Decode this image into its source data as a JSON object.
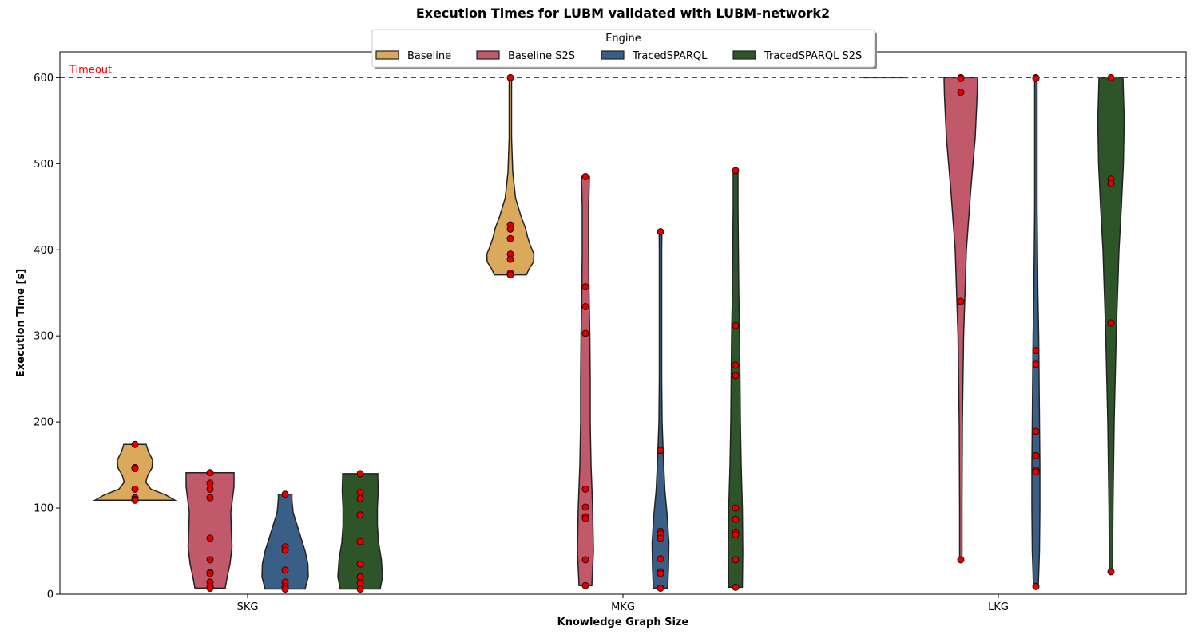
{
  "chart_data": {
    "type": "violin",
    "title": "Execution Times for LUBM validated with LUBM-network2",
    "xlabel": "Knowledge Graph Size",
    "ylabel": "Execution Time [s]",
    "ylim": [
      0,
      630
    ],
    "yticks": [
      0,
      100,
      200,
      300,
      400,
      500,
      600
    ],
    "categories": [
      "SKG",
      "MKG",
      "LKG"
    ],
    "timeout": {
      "value": 600,
      "label": "Timeout",
      "color": "#ff0000"
    },
    "legend": {
      "title": "Engine",
      "placement": "top-center"
    },
    "series": [
      {
        "name": "Baseline",
        "color": "#dba95c",
        "points": [
          [
            174,
            147,
            146,
            122,
            112,
            110,
            109
          ],
          [
            600,
            429,
            424,
            413,
            395,
            389,
            373,
            371
          ],
          []
        ],
        "shapes": [
          [
            [
              109,
              1.0
            ],
            [
              115,
              0.78
            ],
            [
              122,
              0.4
            ],
            [
              130,
              0.27
            ],
            [
              138,
              0.32
            ],
            [
              147,
              0.43
            ],
            [
              156,
              0.44
            ],
            [
              165,
              0.34
            ],
            [
              174,
              0.28
            ]
          ],
          [
            [
              371,
              0.4
            ],
            [
              378,
              0.47
            ],
            [
              386,
              0.58
            ],
            [
              395,
              0.59
            ],
            [
              405,
              0.5
            ],
            [
              415,
              0.43
            ],
            [
              425,
              0.38
            ],
            [
              440,
              0.26
            ],
            [
              460,
              0.13
            ],
            [
              490,
              0.06
            ],
            [
              530,
              0.03
            ],
            [
              570,
              0.03
            ],
            [
              600,
              0.03
            ]
          ],
          [
            [
              600,
              0.55
            ],
            [
              600.5,
              0.55
            ]
          ]
        ]
      },
      {
        "name": "Baseline S2S",
        "color": "#c1596a",
        "points": [
          [
            141,
            129,
            122,
            112,
            65,
            40,
            25,
            24,
            14,
            9,
            7
          ],
          [
            485,
            357,
            334,
            303,
            122,
            101,
            90,
            88,
            40,
            10
          ],
          [
            600,
            599,
            583,
            340,
            40
          ]
        ],
        "shapes": [
          [
            [
              7,
              0.38
            ],
            [
              20,
              0.43
            ],
            [
              35,
              0.5
            ],
            [
              55,
              0.55
            ],
            [
              75,
              0.53
            ],
            [
              95,
              0.52
            ],
            [
              110,
              0.56
            ],
            [
              125,
              0.6
            ],
            [
              141,
              0.6
            ]
          ],
          [
            [
              10,
              0.16
            ],
            [
              50,
              0.2
            ],
            [
              100,
              0.18
            ],
            [
              150,
              0.14
            ],
            [
              200,
              0.12
            ],
            [
              250,
              0.12
            ],
            [
              300,
              0.11
            ],
            [
              350,
              0.09
            ],
            [
              400,
              0.08
            ],
            [
              450,
              0.08
            ],
            [
              485,
              0.1
            ]
          ],
          [
            [
              40,
              0.03
            ],
            [
              100,
              0.03
            ],
            [
              200,
              0.04
            ],
            [
              300,
              0.07
            ],
            [
              400,
              0.14
            ],
            [
              470,
              0.25
            ],
            [
              530,
              0.36
            ],
            [
              580,
              0.41
            ],
            [
              600,
              0.42
            ]
          ]
        ]
      },
      {
        "name": "TracedSPARQL",
        "color": "#3a5f86",
        "points": [
          [
            116,
            55,
            51,
            28,
            14,
            9,
            6
          ],
          [
            421,
            167,
            73,
            70,
            65,
            41,
            26,
            24,
            7
          ],
          [
            600,
            599,
            283,
            267,
            189,
            161,
            144,
            142,
            9
          ]
        ],
        "shapes": [
          [
            [
              6,
              0.5
            ],
            [
              20,
              0.58
            ],
            [
              35,
              0.57
            ],
            [
              50,
              0.5
            ],
            [
              65,
              0.4
            ],
            [
              80,
              0.3
            ],
            [
              95,
              0.2
            ],
            [
              110,
              0.17
            ],
            [
              116,
              0.17
            ]
          ],
          [
            [
              7,
              0.18
            ],
            [
              30,
              0.2
            ],
            [
              60,
              0.21
            ],
            [
              90,
              0.17
            ],
            [
              120,
              0.11
            ],
            [
              160,
              0.07
            ],
            [
              200,
              0.04
            ],
            [
              250,
              0.03
            ],
            [
              300,
              0.03
            ],
            [
              350,
              0.03
            ],
            [
              400,
              0.03
            ],
            [
              421,
              0.035
            ]
          ],
          [
            [
              9,
              0.06
            ],
            [
              50,
              0.09
            ],
            [
              100,
              0.1
            ],
            [
              150,
              0.1
            ],
            [
              200,
              0.09
            ],
            [
              250,
              0.08
            ],
            [
              300,
              0.07
            ],
            [
              350,
              0.05
            ],
            [
              400,
              0.04
            ],
            [
              450,
              0.03
            ],
            [
              500,
              0.03
            ],
            [
              550,
              0.03
            ],
            [
              600,
              0.03
            ]
          ]
        ]
      },
      {
        "name": "TracedSPARQL S2S",
        "color": "#2d5529",
        "points": [
          [
            140,
            118,
            111,
            92,
            61,
            35,
            20,
            13,
            6
          ],
          [
            492,
            312,
            266,
            254,
            100,
            87,
            72,
            69,
            40,
            8
          ],
          [
            600,
            482,
            477,
            315,
            26
          ]
        ],
        "shapes": [
          [
            [
              6,
              0.5
            ],
            [
              20,
              0.56
            ],
            [
              40,
              0.53
            ],
            [
              60,
              0.46
            ],
            [
              80,
              0.43
            ],
            [
              100,
              0.43
            ],
            [
              120,
              0.45
            ],
            [
              135,
              0.44
            ],
            [
              140,
              0.44
            ]
          ],
          [
            [
              8,
              0.17
            ],
            [
              50,
              0.18
            ],
            [
              100,
              0.17
            ],
            [
              150,
              0.14
            ],
            [
              200,
              0.12
            ],
            [
              250,
              0.11
            ],
            [
              300,
              0.1
            ],
            [
              350,
              0.08
            ],
            [
              400,
              0.07
            ],
            [
              450,
              0.06
            ],
            [
              492,
              0.06
            ]
          ],
          [
            [
              26,
              0.04
            ],
            [
              100,
              0.05
            ],
            [
              200,
              0.08
            ],
            [
              300,
              0.13
            ],
            [
              400,
              0.2
            ],
            [
              450,
              0.26
            ],
            [
              500,
              0.31
            ],
            [
              550,
              0.33
            ],
            [
              600,
              0.3
            ]
          ]
        ]
      }
    ]
  }
}
